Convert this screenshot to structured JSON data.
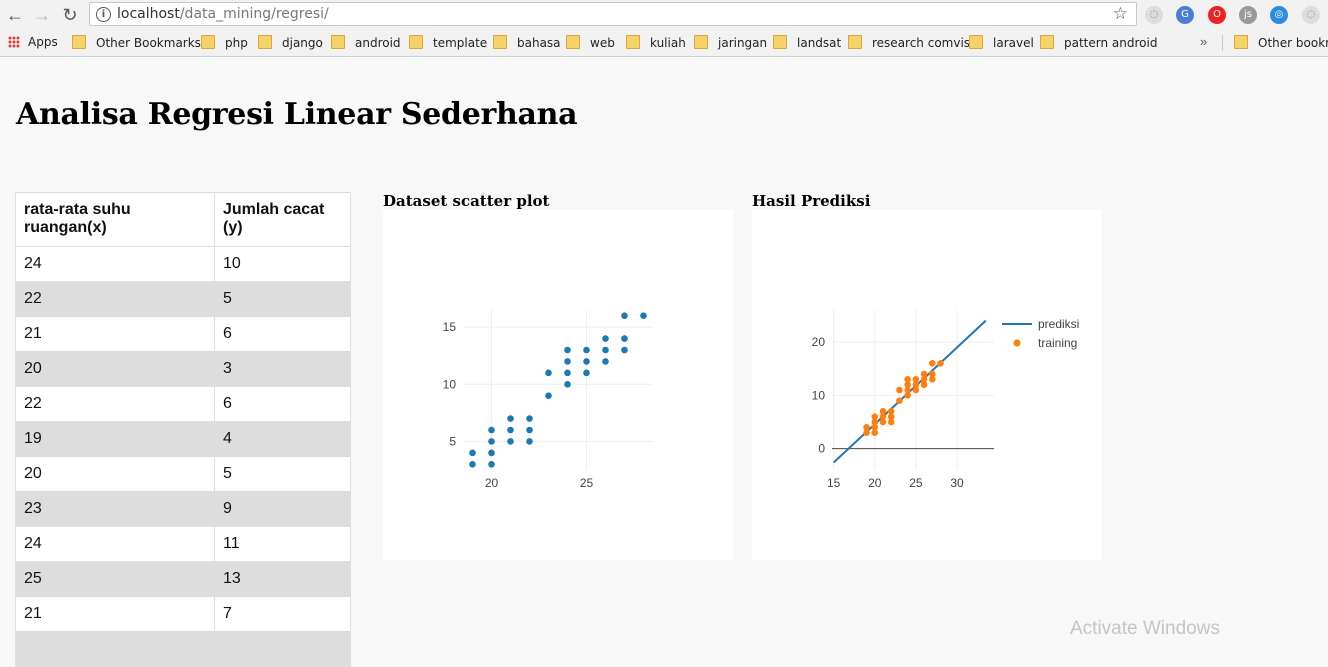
{
  "browser": {
    "url_host": "localhost",
    "url_path": "/data_mining/regresi/",
    "bookmarks": [
      "Apps",
      "Other Bookmarks",
      "php",
      "django",
      "android",
      "template",
      "bahasa",
      "web",
      "kuliah",
      "jaringan",
      "landsat",
      "research comvis",
      "laravel",
      "pattern android",
      "Other bookmarks"
    ]
  },
  "page": {
    "title": "Analisa Regresi Linear Sederhana",
    "table": {
      "headers": [
        "rata-rata suhu ruangan(x)",
        "Jumlah cacat (y)"
      ],
      "rows": [
        [
          "24",
          "10"
        ],
        [
          "22",
          "5"
        ],
        [
          "21",
          "6"
        ],
        [
          "20",
          "3"
        ],
        [
          "22",
          "6"
        ],
        [
          "19",
          "4"
        ],
        [
          "20",
          "5"
        ],
        [
          "23",
          "9"
        ],
        [
          "24",
          "11"
        ],
        [
          "25",
          "13"
        ],
        [
          "21",
          "7"
        ],
        [
          "",
          ""
        ]
      ]
    },
    "watermark": "Activate Windows"
  },
  "chart_data": [
    {
      "type": "scatter",
      "title": "Dataset scatter plot",
      "xlim": [
        18.5,
        28.5
      ],
      "ylim": [
        2.5,
        16.5
      ],
      "xticks": [
        20,
        25
      ],
      "yticks": [
        5,
        10,
        15
      ],
      "color": "#1f77b4",
      "grid": true,
      "x": [
        19,
        19,
        20,
        20,
        20,
        20,
        21,
        21,
        21,
        22,
        22,
        22,
        23,
        23,
        24,
        24,
        24,
        24,
        25,
        25,
        25,
        26,
        26,
        26,
        27,
        27,
        27,
        28
      ],
      "y": [
        3,
        4,
        3,
        4,
        5,
        6,
        5,
        6,
        7,
        5,
        6,
        7,
        9,
        11,
        10,
        11,
        12,
        13,
        11,
        12,
        13,
        12,
        13,
        14,
        13,
        14,
        16,
        16
      ]
    },
    {
      "type": "line",
      "title": "Hasil Prediksi",
      "xlim": [
        14.8,
        34.5
      ],
      "ylim": [
        -4,
        26
      ],
      "xticks": [
        15,
        20,
        25,
        30
      ],
      "yticks": [
        0,
        10,
        20
      ],
      "grid": true,
      "legend_position": "top-right",
      "series": [
        {
          "name": "prediksi",
          "kind": "line",
          "color": "#1f77b4",
          "x": [
            15,
            33.5
          ],
          "y": [
            -2.6,
            24.0
          ]
        },
        {
          "name": "training",
          "kind": "scatter",
          "color": "#ff7f0e",
          "x": [
            19,
            19,
            20,
            20,
            20,
            20,
            21,
            21,
            21,
            22,
            22,
            22,
            23,
            23,
            24,
            24,
            24,
            24,
            25,
            25,
            25,
            26,
            26,
            26,
            27,
            27,
            27,
            28
          ],
          "y": [
            3,
            4,
            3,
            4,
            5,
            6,
            5,
            6,
            7,
            5,
            6,
            7,
            9,
            11,
            10,
            11,
            12,
            13,
            11,
            12,
            13,
            12,
            13,
            14,
            13,
            14,
            16,
            16
          ]
        }
      ]
    }
  ]
}
